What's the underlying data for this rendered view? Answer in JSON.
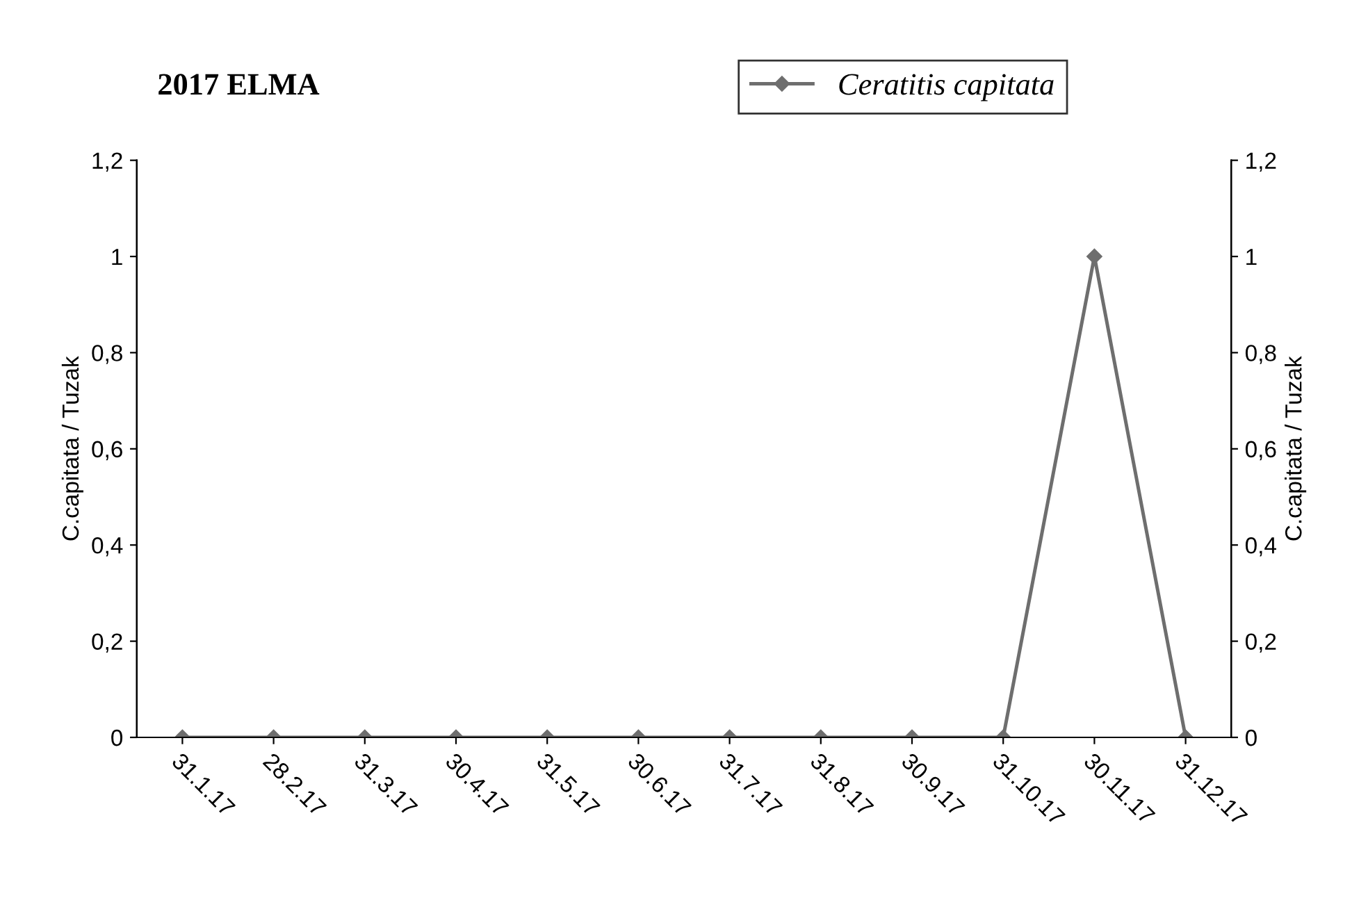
{
  "chart_data": {
    "type": "line",
    "title": "2017 ELMA",
    "ylabel": "C.capitata / Tuzak",
    "y2label": "C.capitata / Tuzak",
    "categories": [
      "31.1.17",
      "28.2.17",
      "31.3.17",
      "30.4.17",
      "31.5.17",
      "30.6.17",
      "31.7.17",
      "31.8.17",
      "30.9.17",
      "31.10.17",
      "30.11.17",
      "31.12.17"
    ],
    "series": [
      {
        "name": "Ceratitis capitata",
        "color": "#6e6e6e",
        "values": [
          0,
          0,
          0,
          0,
          0,
          0,
          0,
          0,
          0,
          0,
          1,
          0
        ]
      }
    ],
    "ylim": [
      0,
      1.2
    ],
    "yticks": [
      0,
      {
        "value": 0.2,
        "label": "0,2"
      },
      {
        "value": 0.4,
        "label": "0,4"
      },
      {
        "value": 0.6,
        "label": "0,6"
      },
      {
        "value": 0.8,
        "label": "0,8"
      },
      1,
      {
        "value": 1.2,
        "label": "1,2"
      }
    ],
    "y2lim": [
      0,
      1.2
    ],
    "y2ticks": [
      0,
      {
        "value": 0.2,
        "label": "0,2"
      },
      {
        "value": 0.4,
        "label": "0,4"
      },
      {
        "value": 0.6,
        "label": "0,6"
      },
      {
        "value": 0.8,
        "label": "0,8"
      },
      1,
      {
        "value": 1.2,
        "label": "1,2"
      }
    ],
    "marker": "diamond",
    "line_style": "solid",
    "grid": false,
    "legend": "top right"
  }
}
